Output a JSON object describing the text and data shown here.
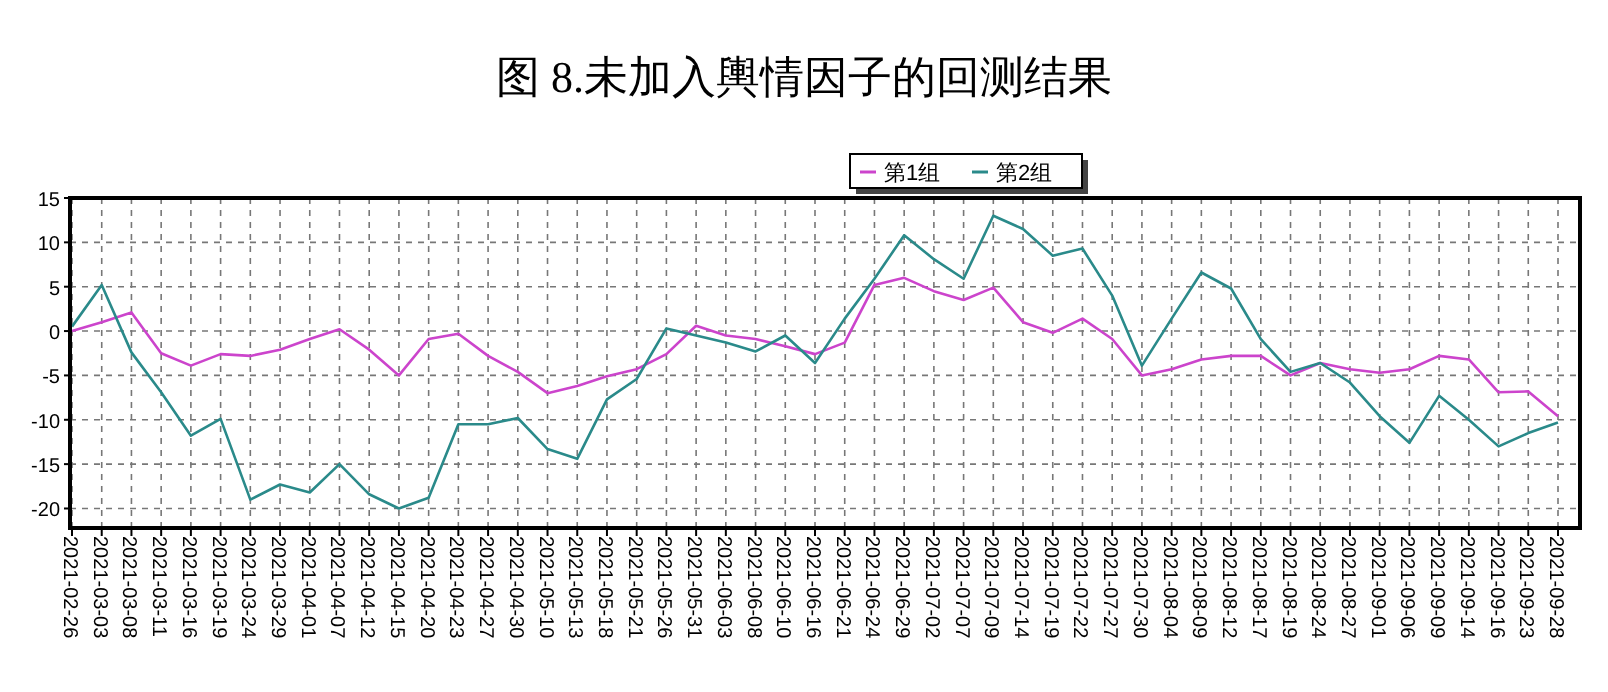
{
  "chart_data": {
    "type": "line",
    "title": "图 8.未加入輿情因子的回测结果",
    "categories": [
      "2021-02-26",
      "2021-03-03",
      "2021-03-08",
      "2021-03-11",
      "2021-03-16",
      "2021-03-19",
      "2021-03-24",
      "2021-03-29",
      "2021-04-01",
      "2021-04-07",
      "2021-04-12",
      "2021-04-15",
      "2021-04-20",
      "2021-04-23",
      "2021-04-27",
      "2021-04-30",
      "2021-05-10",
      "2021-05-13",
      "2021-05-18",
      "2021-05-21",
      "2021-05-26",
      "2021-05-31",
      "2021-06-03",
      "2021-06-08",
      "2021-06-10",
      "2021-06-16",
      "2021-06-21",
      "2021-06-24",
      "2021-06-29",
      "2021-07-02",
      "2021-07-07",
      "2021-07-09",
      "2021-07-14",
      "2021-07-19",
      "2021-07-22",
      "2021-07-27",
      "2021-07-30",
      "2021-08-04",
      "2021-08-09",
      "2021-08-12",
      "2021-08-17",
      "2021-08-19",
      "2021-08-24",
      "2021-08-27",
      "2021-09-01",
      "2021-09-06",
      "2021-09-09",
      "2021-09-14",
      "2021-09-16",
      "2021-09-23",
      "2021-09-28"
    ],
    "series": [
      {
        "name": "第1组",
        "color": "#cc44cc",
        "values": [
          0,
          1,
          2.1,
          -2.5,
          -3.9,
          -2.6,
          -2.8,
          -2.1,
          -0.9,
          0.2,
          -2.1,
          -5,
          -0.9,
          -0.3,
          -2.8,
          -4.6,
          -7,
          -6.2,
          -5.1,
          -4.3,
          -2.6,
          0.6,
          -0.5,
          -0.9,
          -1.7,
          -2.6,
          -1.3,
          5.2,
          6,
          4.5,
          3.5,
          4.9,
          1,
          -0.2,
          1.4,
          -0.9,
          -5,
          -4.3,
          -3.2,
          -2.8,
          -2.8,
          -5,
          -3.6,
          -4.3,
          -4.7,
          -4.3,
          -2.8,
          -3.2,
          -6.9,
          -6.8,
          -9.6
        ]
      },
      {
        "name": "第2组",
        "color": "#2a8a8a",
        "values": [
          0.5,
          5.2,
          -2.4,
          -6.9,
          -11.8,
          -9.9,
          -19,
          -17.3,
          -18.2,
          -15,
          -18.4,
          -20,
          -18.8,
          -10.5,
          -10.5,
          -9.8,
          -13.3,
          -14.4,
          -7.7,
          -5.4,
          0.3,
          -0.5,
          -1.3,
          -2.3,
          -0.5,
          -3.6,
          1.4,
          5.9,
          10.8,
          8.1,
          5.9,
          13,
          11.5,
          8.5,
          9.3,
          4,
          -3.9,
          1.4,
          6.6,
          4.8,
          -0.9,
          -4.6,
          -3.6,
          -5.8,
          -9.6,
          -12.6,
          -7.3,
          -10,
          -13,
          -11.5,
          -10.3
        ]
      }
    ],
    "ylim": [
      -22.2,
      15
    ],
    "yticks": [
      -20,
      -15,
      -10,
      -5,
      0,
      5,
      10,
      15
    ],
    "grid": true,
    "legend": "top",
    "marker": "none",
    "line_style": "solid"
  }
}
